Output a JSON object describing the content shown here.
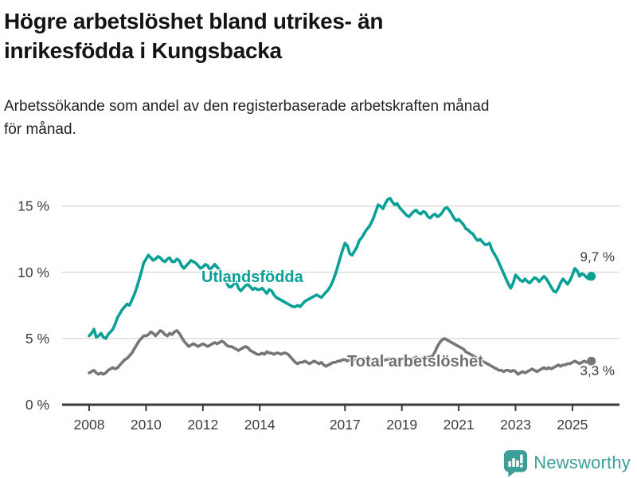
{
  "header": {
    "title_lines": [
      "Högre arbetslöshet bland utrikes- än",
      "inrikesfödda i Kungsbacka"
    ],
    "subtitle_lines": [
      "Arbetssökande som andel av den registerbaserade arbetskraften månad",
      "för månad."
    ]
  },
  "footer": {
    "brand_name": "Newsworthy",
    "brand_color": "#3b9e97"
  },
  "chart_data": {
    "type": "line",
    "title": "Högre arbetslöshet bland utrikes- än inrikesfödda i Kungsbacka",
    "subtitle": "Arbetssökande som andel av den registerbaserade arbetskraften månad för månad.",
    "x_start_year": 2008,
    "x_step_months": 1,
    "x_end": "2025-09",
    "grid": true,
    "legend_position": "inline-labels",
    "ylim": [
      0,
      16.5
    ],
    "y_ticks": [
      {
        "value": 0,
        "label": "0 %"
      },
      {
        "value": 5,
        "label": "5 %"
      },
      {
        "value": 10,
        "label": "10 %"
      },
      {
        "value": 15,
        "label": "15 %"
      }
    ],
    "x_ticks": [
      {
        "year": 2008,
        "label": "2008"
      },
      {
        "year": 2010,
        "label": "2010"
      },
      {
        "year": 2012,
        "label": "2012"
      },
      {
        "year": 2014,
        "label": "2014"
      },
      {
        "year": 2017,
        "label": "2017"
      },
      {
        "year": 2019,
        "label": "2019"
      },
      {
        "year": 2021,
        "label": "2021"
      },
      {
        "year": 2023,
        "label": "2023"
      },
      {
        "year": 2025,
        "label": "2025"
      }
    ],
    "axis_color": "#3a3a3a",
    "grid_color": "#dcdcdc",
    "tick_label_color": "#3d3d3d",
    "series": [
      {
        "name": "Utlandsfödda",
        "color": "#0ba096",
        "end_label": "9,7 %",
        "end_value": 9.7,
        "values": [
          5.2,
          5.4,
          5.7,
          5.1,
          5.2,
          5.4,
          5.1,
          5.0,
          5.3,
          5.5,
          5.7,
          6.1,
          6.6,
          6.9,
          7.2,
          7.4,
          7.6,
          7.5,
          7.9,
          8.3,
          8.8,
          9.4,
          10.0,
          10.7,
          11.0,
          11.3,
          11.1,
          10.9,
          11.0,
          11.2,
          11.1,
          10.9,
          10.8,
          11.0,
          11.1,
          10.8,
          10.8,
          11.0,
          10.9,
          10.5,
          10.3,
          10.5,
          10.7,
          10.9,
          10.8,
          10.7,
          10.5,
          10.3,
          10.4,
          10.6,
          10.5,
          10.2,
          10.4,
          10.6,
          10.4,
          10.2,
          9.8,
          9.5,
          9.2,
          8.9,
          8.9,
          9.1,
          9.3,
          8.8,
          8.6,
          8.8,
          9.0,
          9.1,
          8.9,
          8.7,
          8.8,
          8.7,
          8.7,
          8.8,
          8.6,
          8.4,
          8.7,
          8.6,
          8.3,
          8.1,
          8.0,
          7.9,
          7.8,
          7.7,
          7.6,
          7.5,
          7.4,
          7.4,
          7.5,
          7.4,
          7.6,
          7.8,
          7.9,
          8.0,
          8.1,
          8.2,
          8.3,
          8.2,
          8.1,
          8.3,
          8.5,
          8.7,
          9.0,
          9.4,
          9.9,
          10.5,
          11.1,
          11.7,
          12.2,
          12.0,
          11.4,
          11.3,
          11.6,
          11.9,
          12.4,
          12.6,
          12.9,
          13.2,
          13.4,
          13.7,
          14.1,
          14.6,
          15.1,
          15.0,
          14.8,
          15.2,
          15.5,
          15.6,
          15.3,
          15.1,
          15.2,
          14.9,
          14.7,
          14.5,
          14.3,
          14.2,
          14.4,
          14.6,
          14.7,
          14.5,
          14.4,
          14.6,
          14.5,
          14.2,
          14.1,
          14.3,
          14.4,
          14.2,
          14.3,
          14.5,
          14.8,
          14.9,
          14.7,
          14.4,
          14.1,
          13.9,
          14.0,
          13.8,
          13.6,
          13.3,
          13.2,
          13.0,
          12.9,
          12.6,
          12.4,
          12.5,
          12.3,
          12.1,
          12.1,
          12.2,
          11.7,
          11.4,
          11.1,
          10.7,
          10.3,
          9.9,
          9.5,
          9.1,
          8.8,
          9.2,
          9.8,
          9.6,
          9.4,
          9.3,
          9.5,
          9.3,
          9.2,
          9.4,
          9.6,
          9.5,
          9.3,
          9.5,
          9.7,
          9.5,
          9.2,
          8.9,
          8.6,
          8.5,
          8.8,
          9.2,
          9.5,
          9.3,
          9.1,
          9.4,
          9.8,
          10.3,
          10.1,
          9.7,
          9.9,
          9.8,
          9.6,
          9.5,
          9.7
        ]
      },
      {
        "name": "Total arbetslöshet",
        "color": "#767676",
        "end_label": "3,3 %",
        "end_value": 3.3,
        "values": [
          2.4,
          2.5,
          2.6,
          2.4,
          2.3,
          2.4,
          2.3,
          2.4,
          2.6,
          2.7,
          2.8,
          2.7,
          2.8,
          3.0,
          3.2,
          3.4,
          3.5,
          3.7,
          3.9,
          4.2,
          4.5,
          4.8,
          5.0,
          5.2,
          5.2,
          5.3,
          5.5,
          5.4,
          5.2,
          5.4,
          5.6,
          5.5,
          5.3,
          5.2,
          5.4,
          5.3,
          5.5,
          5.6,
          5.4,
          5.1,
          4.8,
          4.6,
          4.4,
          4.5,
          4.6,
          4.5,
          4.4,
          4.5,
          4.6,
          4.5,
          4.4,
          4.5,
          4.6,
          4.7,
          4.6,
          4.7,
          4.8,
          4.7,
          4.5,
          4.4,
          4.4,
          4.3,
          4.2,
          4.1,
          4.2,
          4.3,
          4.4,
          4.3,
          4.1,
          4.0,
          3.9,
          3.8,
          3.8,
          3.9,
          3.8,
          4.0,
          3.9,
          3.9,
          3.8,
          3.9,
          3.9,
          3.8,
          3.9,
          3.9,
          3.8,
          3.6,
          3.4,
          3.2,
          3.1,
          3.2,
          3.2,
          3.3,
          3.2,
          3.1,
          3.2,
          3.3,
          3.2,
          3.1,
          3.2,
          3.0,
          2.9,
          3.0,
          3.1,
          3.2,
          3.2,
          3.3,
          3.3,
          3.4,
          3.4,
          3.3,
          3.4,
          3.3,
          3.4,
          3.5,
          3.4,
          3.4,
          3.5,
          3.4,
          3.5,
          3.4,
          3.4,
          3.3,
          3.4,
          3.4,
          3.3,
          3.4,
          3.4,
          3.5,
          3.4,
          3.3,
          3.4,
          3.4,
          3.4,
          3.5,
          3.4,
          3.5,
          3.4,
          3.5,
          3.6,
          3.5,
          3.5,
          3.4,
          3.5,
          3.6,
          3.6,
          3.7,
          4.0,
          4.4,
          4.7,
          4.9,
          5.0,
          4.9,
          4.8,
          4.7,
          4.6,
          4.5,
          4.4,
          4.3,
          4.2,
          4.0,
          3.9,
          3.8,
          3.7,
          3.6,
          3.5,
          3.4,
          3.3,
          3.2,
          3.1,
          3.0,
          2.9,
          2.8,
          2.7,
          2.6,
          2.6,
          2.5,
          2.6,
          2.6,
          2.5,
          2.6,
          2.5,
          2.3,
          2.4,
          2.5,
          2.4,
          2.5,
          2.6,
          2.7,
          2.6,
          2.5,
          2.6,
          2.7,
          2.8,
          2.7,
          2.8,
          2.7,
          2.8,
          2.9,
          3.0,
          2.9,
          3.0,
          3.0,
          3.1,
          3.1,
          3.2,
          3.3,
          3.2,
          3.1,
          3.2,
          3.3,
          3.2,
          3.3,
          3.3
        ]
      }
    ]
  }
}
